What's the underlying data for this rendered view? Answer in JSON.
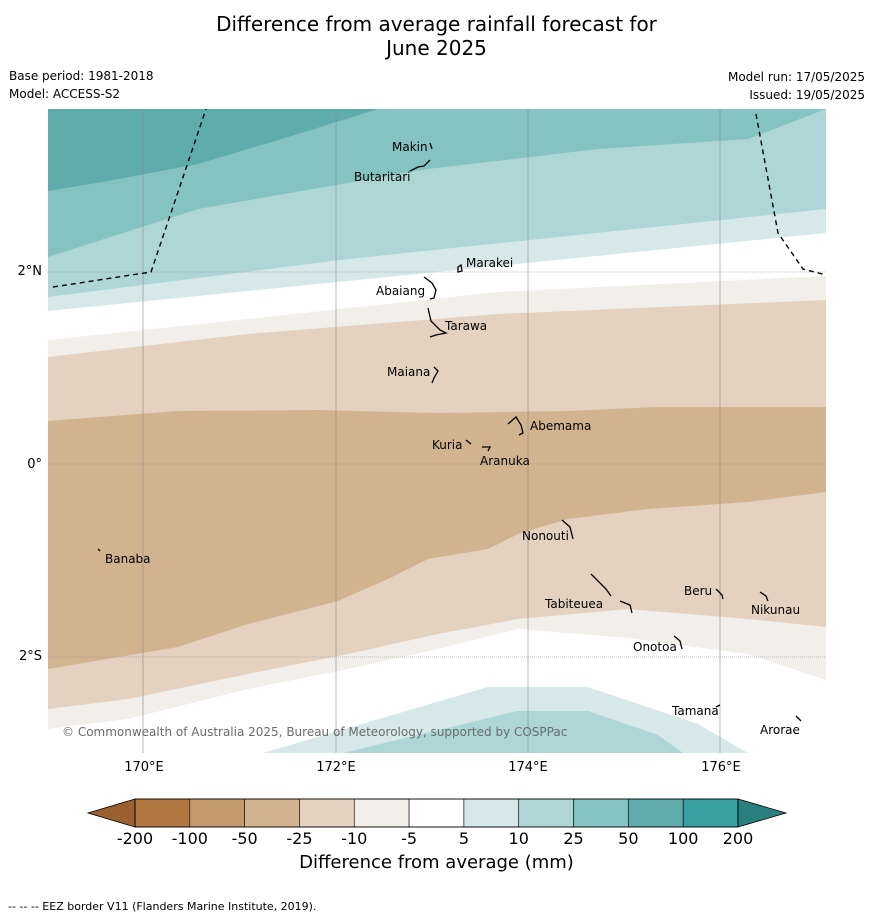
{
  "title_line1": "Difference from average rainfall forecast for",
  "title_line2": "June 2025",
  "meta_left": [
    "Base period: 1981-2018",
    "Model: ACCESS-S2"
  ],
  "meta_right": [
    "Model run: 17/05/2025",
    "Issued: 19/05/2025"
  ],
  "lat_labels": [
    "2°N",
    "0°",
    "2°S"
  ],
  "lon_labels": [
    "170°E",
    "172°E",
    "174°E",
    "176°E"
  ],
  "places": [
    "Makin",
    "Butaritari",
    "Marakei",
    "Abaiang",
    "Tarawa",
    "Maiana",
    "Abemama",
    "Kuria",
    "Aranuka",
    "Nonouti",
    "Banaba",
    "Beru",
    "Tabiteuea",
    "Nikunau",
    "Onotoa",
    "Tamana",
    "Arorae"
  ],
  "copyright": "© Commonwealth of Australia 2025, Bureau of Meteorology, supported by COSPPac",
  "colorbar": {
    "ticks": [
      "-200",
      "-100",
      "-50",
      "-25",
      "-10",
      "-5",
      "5",
      "10",
      "25",
      "50",
      "100",
      "200"
    ],
    "colors": [
      "#b07840",
      "#c49a6c",
      "#d2b390",
      "#e4d1bf",
      "#f2eee9",
      "#ffffff",
      "#d6e8e8",
      "#aed6d6",
      "#85c2c2",
      "#5eacac",
      "#38a0a0"
    ],
    "under_color": "#9a6030",
    "over_color": "#2a7f7f",
    "label": "Difference from average (mm)"
  },
  "footer": "-- -- -- EEZ border V11 (Flanders Marine Institute, 2019)."
}
